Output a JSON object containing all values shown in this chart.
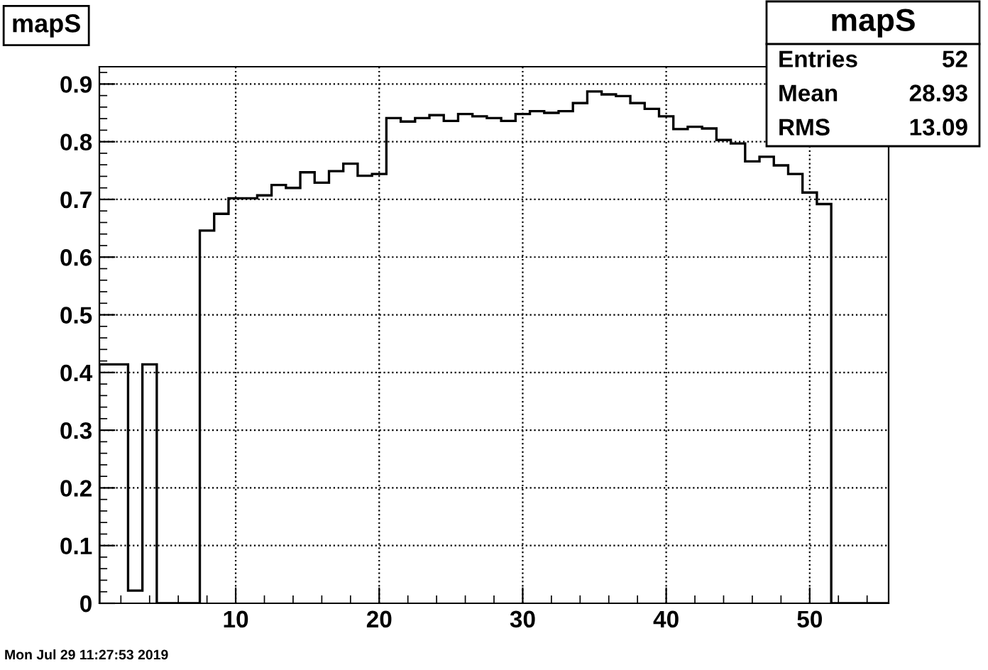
{
  "chart_data": {
    "type": "histogram",
    "title": "mapS",
    "bins": [
      0.5,
      1.5,
      2.5,
      3.5,
      4.5,
      5.5,
      6.5,
      7.5,
      8.5,
      9.5,
      10.5,
      11.5,
      12.5,
      13.5,
      14.5,
      15.5,
      16.5,
      17.5,
      18.5,
      19.5,
      20.5,
      21.5,
      22.5,
      23.5,
      24.5,
      25.5,
      26.5,
      27.5,
      28.5,
      29.5,
      30.5,
      31.5,
      32.5,
      33.5,
      34.5,
      35.5,
      36.5,
      37.5,
      38.5,
      39.5,
      40.5,
      41.5,
      42.5,
      43.5,
      44.5,
      45.5,
      46.5,
      47.5,
      48.5,
      49.5,
      50.5,
      51.5,
      52.5,
      53.5,
      54.5,
      55.5
    ],
    "values": [
      0.414,
      0.414,
      0.022,
      0.414,
      0,
      0,
      0,
      0.646,
      0.675,
      0.702,
      0.702,
      0.707,
      0.725,
      0.72,
      0.747,
      0.729,
      0.749,
      0.762,
      0.741,
      0.744,
      0.841,
      0.835,
      0.841,
      0.846,
      0.836,
      0.848,
      0.844,
      0.841,
      0.836,
      0.848,
      0.853,
      0.85,
      0.853,
      0.867,
      0.887,
      0.882,
      0.879,
      0.867,
      0.857,
      0.844,
      0.822,
      0.826,
      0.823,
      0.803,
      0.797,
      0.766,
      0.774,
      0.759,
      0.744,
      0.712,
      0.692,
      0,
      0,
      0,
      0
    ],
    "color": "#000000",
    "xlim": [
      0.5,
      55.5
    ],
    "xticks": [
      10,
      20,
      30,
      40,
      50
    ],
    "ylim": [
      0,
      0.93
    ],
    "yticks": [
      0,
      0.1,
      0.2,
      0.3,
      0.4,
      0.5,
      0.6,
      0.7,
      0.8,
      0.9
    ],
    "grid": true,
    "annotations": [
      "mapS",
      "Entries",
      "52",
      "Mean",
      "28.93",
      "RMS",
      "13.09",
      "Mon Jul 29 11:27:53 2019"
    ]
  }
}
